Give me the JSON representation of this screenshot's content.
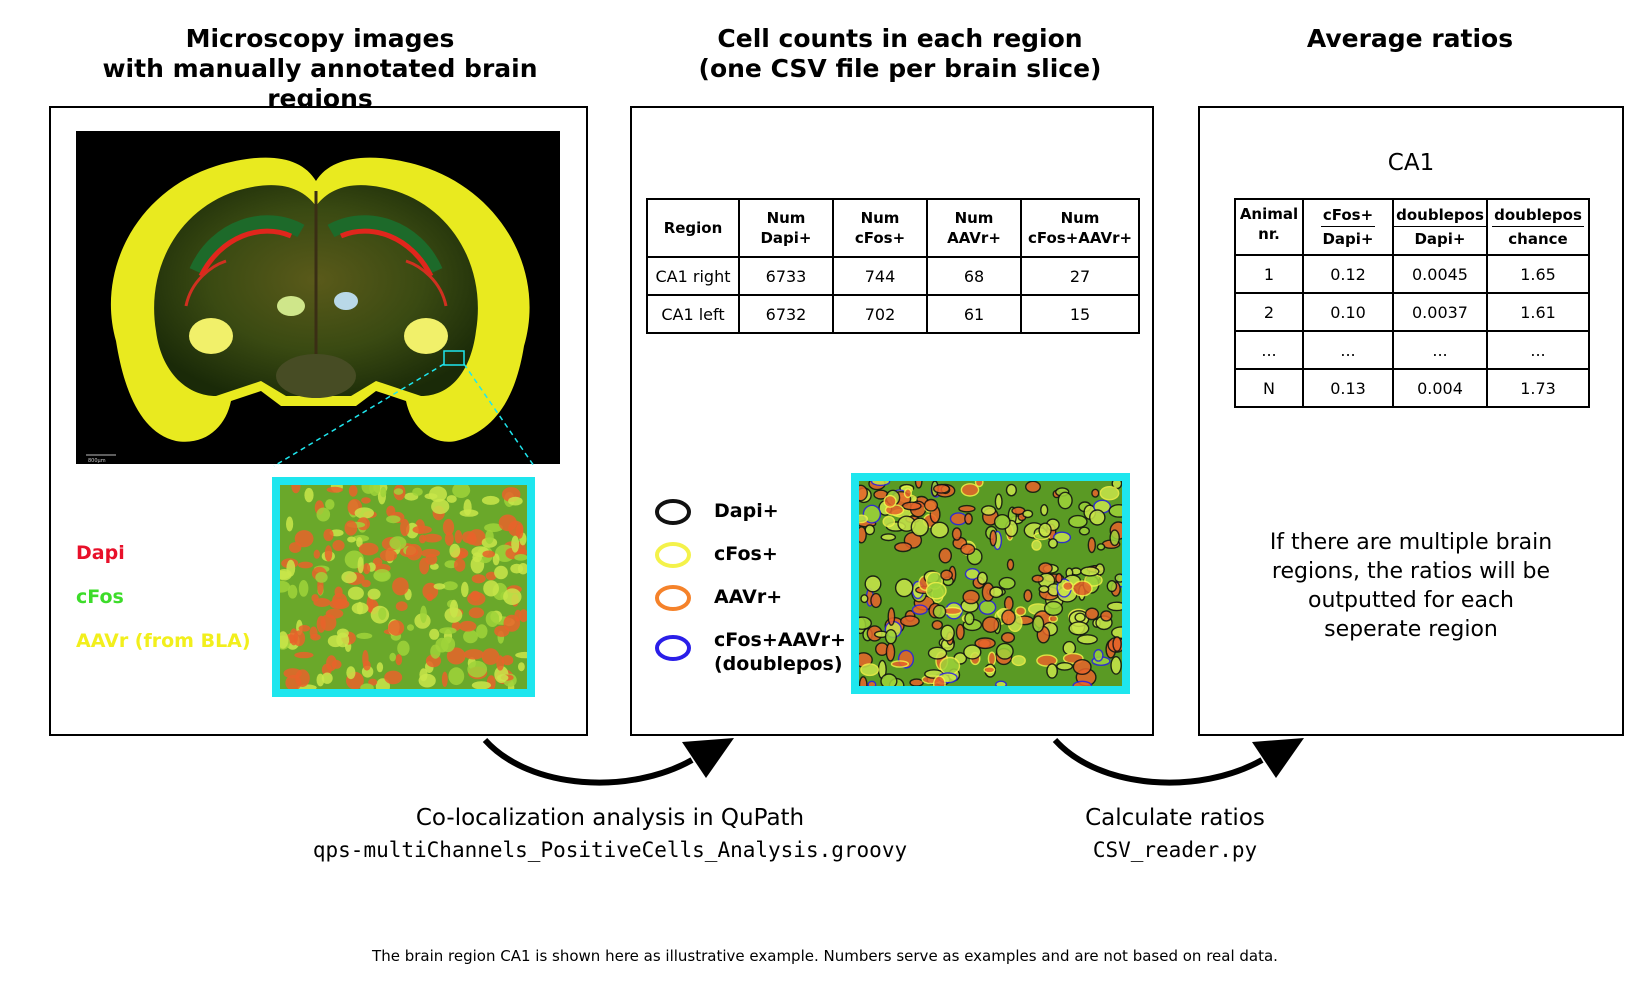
{
  "columns": {
    "left_title_line1": "Microscopy images",
    "left_title_line2": "with manually annotated brain regions",
    "middle_title_line1": "Cell counts in each region",
    "middle_title_line2": "(one CSV file per brain slice)",
    "right_title": "Average ratios"
  },
  "channels": {
    "dapi": "Dapi",
    "cfos": "cFos",
    "aavr": "AAVr (from BLA)",
    "colors": {
      "dapi": "#e8102a",
      "cfos": "#3ddc2a",
      "aavr": "#f2ef1c"
    }
  },
  "scale_bar_label": "800µm",
  "counts_table": {
    "headers": [
      [
        "Region"
      ],
      [
        "Num",
        "Dapi+"
      ],
      [
        "Num",
        "cFos+"
      ],
      [
        "Num",
        "AAVr+"
      ],
      [
        "Num",
        "cFos+AAVr+"
      ]
    ],
    "rows": [
      [
        "CA1 right",
        "6733",
        "744",
        "68",
        "27"
      ],
      [
        "CA1 left",
        "6732",
        "702",
        "61",
        "15"
      ]
    ]
  },
  "legend": {
    "dapi": "Dapi+",
    "cfos": "cFos+",
    "aavr": "AAVr+",
    "double_line1": "cFos+AAVr+",
    "double_line2": "(doublepos)",
    "colors": {
      "dapi": "#111111",
      "cfos": "#f4f24a",
      "aavr": "#f5822a",
      "double": "#2a1ee8"
    }
  },
  "ratios": {
    "region": "CA1",
    "headers": {
      "animal_line1": "Animal",
      "animal_line2": "nr.",
      "cfos_top": "cFos+",
      "cfos_bottom": "Dapi+",
      "double_top": "doublepos",
      "double_bottom": "Dapi+",
      "chance_top": "doublepos",
      "chance_bottom": "chance"
    },
    "rows": [
      [
        "1",
        "0.12",
        "0.0045",
        "1.65"
      ],
      [
        "2",
        "0.10",
        "0.0037",
        "1.61"
      ],
      [
        "...",
        "...",
        "...",
        "..."
      ],
      [
        "N",
        "0.13",
        "0.004",
        "1.73"
      ]
    ],
    "note_lines": [
      "If there are multiple brain",
      "regions, the ratios will be",
      "outputted for each",
      "seperate region"
    ]
  },
  "steps": {
    "step1_label": "Co-localization analysis in QuPath",
    "step1_script": "qps-multiChannels_PositiveCells_Analysis.groovy",
    "step2_label": "Calculate ratios",
    "step2_script": "CSV_reader.py"
  },
  "footnote": "The brain region CA1 is shown here as illustrative example. Numbers serve as examples and are not based on real data.",
  "accent_color": "#1ee6ee"
}
